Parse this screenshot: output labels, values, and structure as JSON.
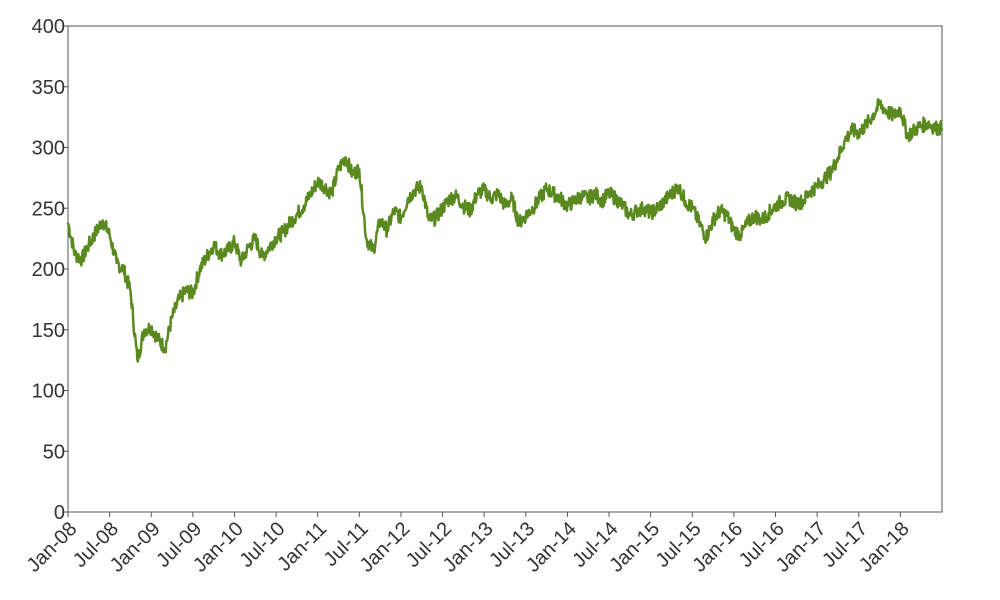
{
  "chart_data": {
    "type": "line",
    "title": "",
    "xlabel": "",
    "ylabel": "",
    "ylim": [
      0,
      400
    ],
    "y_ticks": [
      "0",
      "50",
      "100",
      "150",
      "200",
      "250",
      "300",
      "350",
      "400"
    ],
    "x_ticks": [
      "Jan-08",
      "Jul-08",
      "Jan-09",
      "Jul-09",
      "Jan-10",
      "Jul-10",
      "Jan-11",
      "Jul-11",
      "Jan-12",
      "Jul-12",
      "Jan-13",
      "Jul-13",
      "Jan-14",
      "Jul-14",
      "Jan-15",
      "Jul-15",
      "Jan-16",
      "Jul-16",
      "Jan-17",
      "Jul-17",
      "Jan-18"
    ],
    "xlim": [
      "2008-01",
      "2018-07"
    ],
    "grid": false,
    "legend": "none",
    "series": [
      {
        "color": "#5a8a1f",
        "points": [
          [
            "2008-01",
            238
          ],
          [
            "2008-02",
            212
          ],
          [
            "2008-03",
            208
          ],
          [
            "2008-04",
            220
          ],
          [
            "2008-05",
            230
          ],
          [
            "2008-06",
            240
          ],
          [
            "2008-07",
            228
          ],
          [
            "2008-08",
            205
          ],
          [
            "2008-09",
            200
          ],
          [
            "2008-10",
            182
          ],
          [
            "2008-11",
            125
          ],
          [
            "2008-12",
            150
          ],
          [
            "2009-01",
            152
          ],
          [
            "2009-02",
            142
          ],
          [
            "2009-03",
            135
          ],
          [
            "2009-04",
            160
          ],
          [
            "2009-05",
            175
          ],
          [
            "2009-06",
            182
          ],
          [
            "2009-07",
            180
          ],
          [
            "2009-08",
            200
          ],
          [
            "2009-09",
            210
          ],
          [
            "2009-10",
            220
          ],
          [
            "2009-11",
            212
          ],
          [
            "2009-12",
            215
          ],
          [
            "2010-01",
            222
          ],
          [
            "2010-02",
            206
          ],
          [
            "2010-03",
            218
          ],
          [
            "2010-04",
            225
          ],
          [
            "2010-05",
            210
          ],
          [
            "2010-06",
            218
          ],
          [
            "2010-07",
            226
          ],
          [
            "2010-08",
            230
          ],
          [
            "2010-09",
            238
          ],
          [
            "2010-10",
            245
          ],
          [
            "2010-11",
            252
          ],
          [
            "2010-12",
            262
          ],
          [
            "2011-01",
            272
          ],
          [
            "2011-02",
            268
          ],
          [
            "2011-03",
            262
          ],
          [
            "2011-04",
            282
          ],
          [
            "2011-05",
            292
          ],
          [
            "2011-06",
            278
          ],
          [
            "2011-07",
            282
          ],
          [
            "2011-08",
            225
          ],
          [
            "2011-09",
            215
          ],
          [
            "2011-10",
            240
          ],
          [
            "2011-11",
            232
          ],
          [
            "2011-12",
            248
          ],
          [
            "2012-01",
            242
          ],
          [
            "2012-02",
            258
          ],
          [
            "2012-03",
            265
          ],
          [
            "2012-04",
            268
          ],
          [
            "2012-05",
            240
          ],
          [
            "2012-06",
            242
          ],
          [
            "2012-07",
            250
          ],
          [
            "2012-08",
            258
          ],
          [
            "2012-09",
            260
          ],
          [
            "2012-10",
            252
          ],
          [
            "2012-11",
            248
          ],
          [
            "2012-12",
            262
          ],
          [
            "2013-01",
            265
          ],
          [
            "2013-02",
            258
          ],
          [
            "2013-03",
            262
          ],
          [
            "2013-04",
            252
          ],
          [
            "2013-05",
            258
          ],
          [
            "2013-06",
            238
          ],
          [
            "2013-07",
            244
          ],
          [
            "2013-08",
            250
          ],
          [
            "2013-09",
            258
          ],
          [
            "2013-10",
            266
          ],
          [
            "2013-11",
            262
          ],
          [
            "2013-12",
            258
          ],
          [
            "2014-01",
            252
          ],
          [
            "2014-02",
            256
          ],
          [
            "2014-03",
            260
          ],
          [
            "2014-04",
            258
          ],
          [
            "2014-05",
            262
          ],
          [
            "2014-06",
            256
          ],
          [
            "2014-07",
            262
          ],
          [
            "2014-08",
            258
          ],
          [
            "2014-09",
            252
          ],
          [
            "2014-10",
            244
          ],
          [
            "2014-11",
            248
          ],
          [
            "2014-12",
            250
          ],
          [
            "2015-01",
            246
          ],
          [
            "2015-02",
            250
          ],
          [
            "2015-03",
            256
          ],
          [
            "2015-04",
            262
          ],
          [
            "2015-05",
            268
          ],
          [
            "2015-06",
            256
          ],
          [
            "2015-07",
            250
          ],
          [
            "2015-08",
            238
          ],
          [
            "2015-09",
            226
          ],
          [
            "2015-10",
            240
          ],
          [
            "2015-11",
            248
          ],
          [
            "2015-12",
            244
          ],
          [
            "2016-01",
            232
          ],
          [
            "2016-02",
            228
          ],
          [
            "2016-03",
            238
          ],
          [
            "2016-04",
            244
          ],
          [
            "2016-05",
            240
          ],
          [
            "2016-06",
            246
          ],
          [
            "2016-07",
            252
          ],
          [
            "2016-08",
            256
          ],
          [
            "2016-09",
            258
          ],
          [
            "2016-10",
            254
          ],
          [
            "2016-11",
            256
          ],
          [
            "2016-12",
            264
          ],
          [
            "2017-01",
            268
          ],
          [
            "2017-02",
            274
          ],
          [
            "2017-03",
            280
          ],
          [
            "2017-04",
            292
          ],
          [
            "2017-05",
            306
          ],
          [
            "2017-06",
            314
          ],
          [
            "2017-07",
            312
          ],
          [
            "2017-08",
            318
          ],
          [
            "2017-09",
            326
          ],
          [
            "2017-10",
            336
          ],
          [
            "2017-11",
            330
          ],
          [
            "2017-12",
            326
          ],
          [
            "2018-01",
            332
          ],
          [
            "2018-02",
            310
          ],
          [
            "2018-03",
            314
          ],
          [
            "2018-04",
            318
          ],
          [
            "2018-05",
            320
          ],
          [
            "2018-06",
            316
          ],
          [
            "2018-07",
            316
          ]
        ]
      }
    ]
  }
}
